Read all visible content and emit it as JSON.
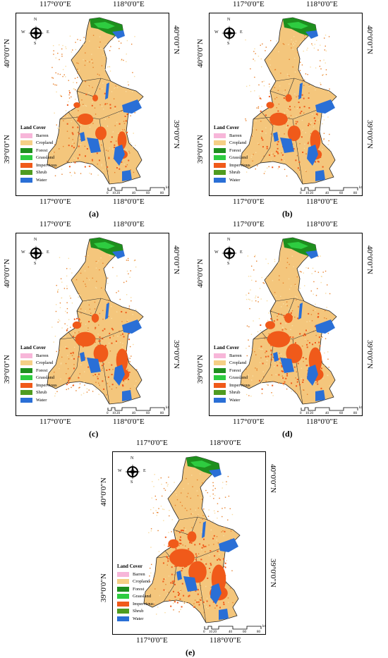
{
  "axis": {
    "lon_left": "117°0'0\"E",
    "lon_right": "118°0'0\"E",
    "lat_top": "40°0'0\"N",
    "lat_bottom": "39°0'0\"N"
  },
  "compass": {
    "n": "N",
    "s": "S",
    "e": "E",
    "w": "W"
  },
  "legend": {
    "title": "Land Cover",
    "items": [
      {
        "label": "Barren",
        "color": "#f7b6d9"
      },
      {
        "label": "Cropland",
        "color": "#f5cf86"
      },
      {
        "label": "Forest",
        "color": "#1e8f1e"
      },
      {
        "label": "Grassland",
        "color": "#2ecc40"
      },
      {
        "label": "Impervious",
        "color": "#f05a1a"
      },
      {
        "label": "Shrub",
        "color": "#4f9c21"
      },
      {
        "label": "Water",
        "color": "#2a6fd6"
      }
    ]
  },
  "scale": {
    "ticks": [
      "0",
      "10",
      "20",
      "40",
      "60",
      "80"
    ],
    "unit": "km"
  },
  "panels": [
    {
      "caption": "(a)"
    },
    {
      "caption": "(b)"
    },
    {
      "caption": "(c)"
    },
    {
      "caption": "(d)"
    },
    {
      "caption": "(e)"
    }
  ]
}
